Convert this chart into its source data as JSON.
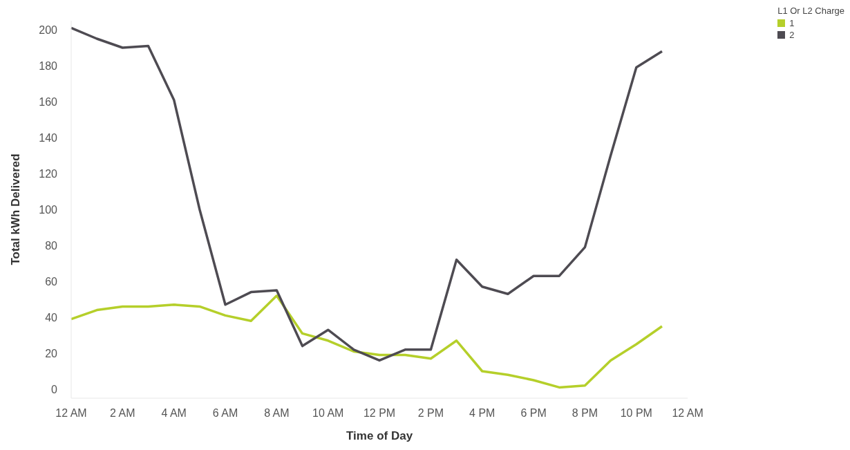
{
  "chart_data": {
    "type": "line",
    "xlabel": "Time of Day",
    "ylabel": "Total kWh Delivered",
    "legend_title": "L1 Or L2 Charge",
    "legend": "top right",
    "grid": false,
    "marker": "none",
    "line_style": "solid",
    "categories": [
      "12 AM",
      null,
      "2 AM",
      null,
      "4 AM",
      null,
      "6 AM",
      null,
      "8 AM",
      null,
      "10 AM",
      null,
      "12 PM",
      null,
      "2 PM",
      null,
      "4 PM",
      null,
      "6 PM",
      null,
      "8 PM",
      null,
      "10 PM",
      null,
      "12 AM"
    ],
    "ylim": [
      -5,
      205
    ],
    "yticks": [
      0,
      20,
      40,
      60,
      80,
      100,
      120,
      140,
      160,
      180,
      200
    ],
    "series": [
      {
        "name": "1",
        "color": "#b5cf2a",
        "values": [
          39,
          44,
          46,
          46,
          47,
          46,
          41,
          38,
          52,
          31,
          27,
          21,
          19,
          19,
          17,
          27,
          10,
          8,
          5,
          1,
          2,
          16,
          25,
          35,
          null
        ]
      },
      {
        "name": "2",
        "color": "#4e4b52",
        "values": [
          201,
          195,
          190,
          191,
          161,
          100,
          47,
          54,
          55,
          24,
          33,
          22,
          16,
          22,
          22,
          72,
          57,
          53,
          63,
          63,
          79,
          130,
          179,
          188,
          null
        ]
      }
    ]
  }
}
